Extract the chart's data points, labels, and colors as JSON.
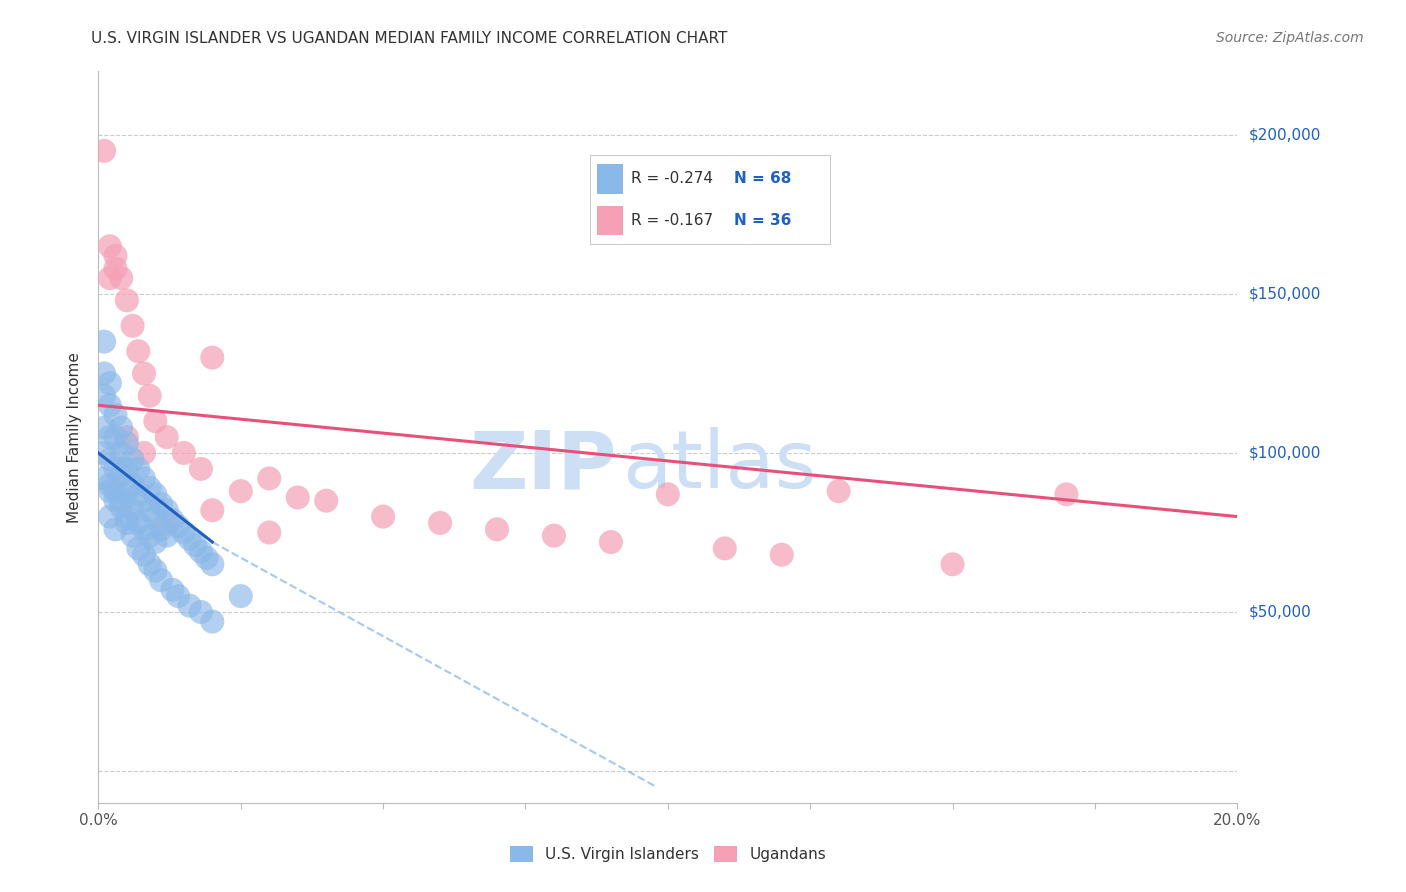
{
  "title": "U.S. VIRGIN ISLANDER VS UGANDAN MEDIAN FAMILY INCOME CORRELATION CHART",
  "source": "Source: ZipAtlas.com",
  "ylabel": "Median Family Income",
  "ytick_vals": [
    0,
    50000,
    100000,
    150000,
    200000
  ],
  "ytick_labels": [
    "",
    "$50,000",
    "$100,000",
    "$150,000",
    "$200,000"
  ],
  "xmin": 0.0,
  "xmax": 0.2,
  "ymin": -10000,
  "ymax": 220000,
  "blue_color": "#8ab8e8",
  "pink_color": "#f5a0b5",
  "blue_line_color": "#2060c0",
  "pink_line_color": "#e8507a",
  "blue_label": "U.S. Virgin Islanders",
  "pink_label": "Ugandans",
  "R_blue": "-0.274",
  "N_blue": "68",
  "R_pink": "-0.167",
  "N_pink": "36",
  "legend_text_color": "#2060c0",
  "title_color": "#333333",
  "watermark_color": "#ccdff5",
  "blue_scatter_x": [
    0.001,
    0.001,
    0.001,
    0.001,
    0.002,
    0.002,
    0.002,
    0.002,
    0.002,
    0.003,
    0.003,
    0.003,
    0.003,
    0.004,
    0.004,
    0.004,
    0.004,
    0.005,
    0.005,
    0.005,
    0.005,
    0.006,
    0.006,
    0.006,
    0.007,
    0.007,
    0.007,
    0.008,
    0.008,
    0.008,
    0.009,
    0.009,
    0.009,
    0.01,
    0.01,
    0.01,
    0.011,
    0.011,
    0.012,
    0.012,
    0.013,
    0.014,
    0.015,
    0.016,
    0.017,
    0.018,
    0.019,
    0.02,
    0.001,
    0.001,
    0.002,
    0.002,
    0.003,
    0.003,
    0.004,
    0.005,
    0.006,
    0.007,
    0.008,
    0.009,
    0.01,
    0.011,
    0.013,
    0.014,
    0.016,
    0.018,
    0.02,
    0.025
  ],
  "blue_scatter_y": [
    135000,
    125000,
    118000,
    108000,
    122000,
    115000,
    105000,
    98000,
    90000,
    112000,
    105000,
    95000,
    88000,
    108000,
    100000,
    93000,
    85000,
    103000,
    95000,
    88000,
    80000,
    98000,
    90000,
    82000,
    95000,
    87000,
    78000,
    92000,
    85000,
    76000,
    89000,
    82000,
    74000,
    87000,
    80000,
    72000,
    84000,
    76000,
    82000,
    74000,
    79000,
    77000,
    75000,
    73000,
    71000,
    69000,
    67000,
    65000,
    100000,
    92000,
    88000,
    80000,
    85000,
    76000,
    83000,
    78000,
    74000,
    70000,
    68000,
    65000,
    63000,
    60000,
    57000,
    55000,
    52000,
    50000,
    47000,
    55000
  ],
  "pink_scatter_x": [
    0.001,
    0.002,
    0.003,
    0.004,
    0.005,
    0.006,
    0.007,
    0.008,
    0.009,
    0.01,
    0.012,
    0.015,
    0.018,
    0.02,
    0.025,
    0.03,
    0.035,
    0.04,
    0.05,
    0.06,
    0.07,
    0.08,
    0.09,
    0.1,
    0.11,
    0.12,
    0.13,
    0.15,
    0.17,
    0.002,
    0.003,
    0.005,
    0.008,
    0.012,
    0.02,
    0.03
  ],
  "pink_scatter_y": [
    195000,
    165000,
    162000,
    155000,
    148000,
    140000,
    132000,
    125000,
    118000,
    110000,
    105000,
    100000,
    95000,
    130000,
    88000,
    92000,
    86000,
    85000,
    80000,
    78000,
    76000,
    74000,
    72000,
    87000,
    70000,
    68000,
    88000,
    65000,
    87000,
    155000,
    158000,
    105000,
    100000,
    78000,
    82000,
    75000
  ],
  "blue_regline_x": [
    0.0,
    0.02
  ],
  "blue_regline_y": [
    100000,
    72000
  ],
  "pink_regline_x": [
    0.0,
    0.2
  ],
  "pink_regline_y": [
    115000,
    80000
  ],
  "dash_line_x": [
    0.02,
    0.098
  ],
  "dash_line_y": [
    72000,
    -5000
  ]
}
